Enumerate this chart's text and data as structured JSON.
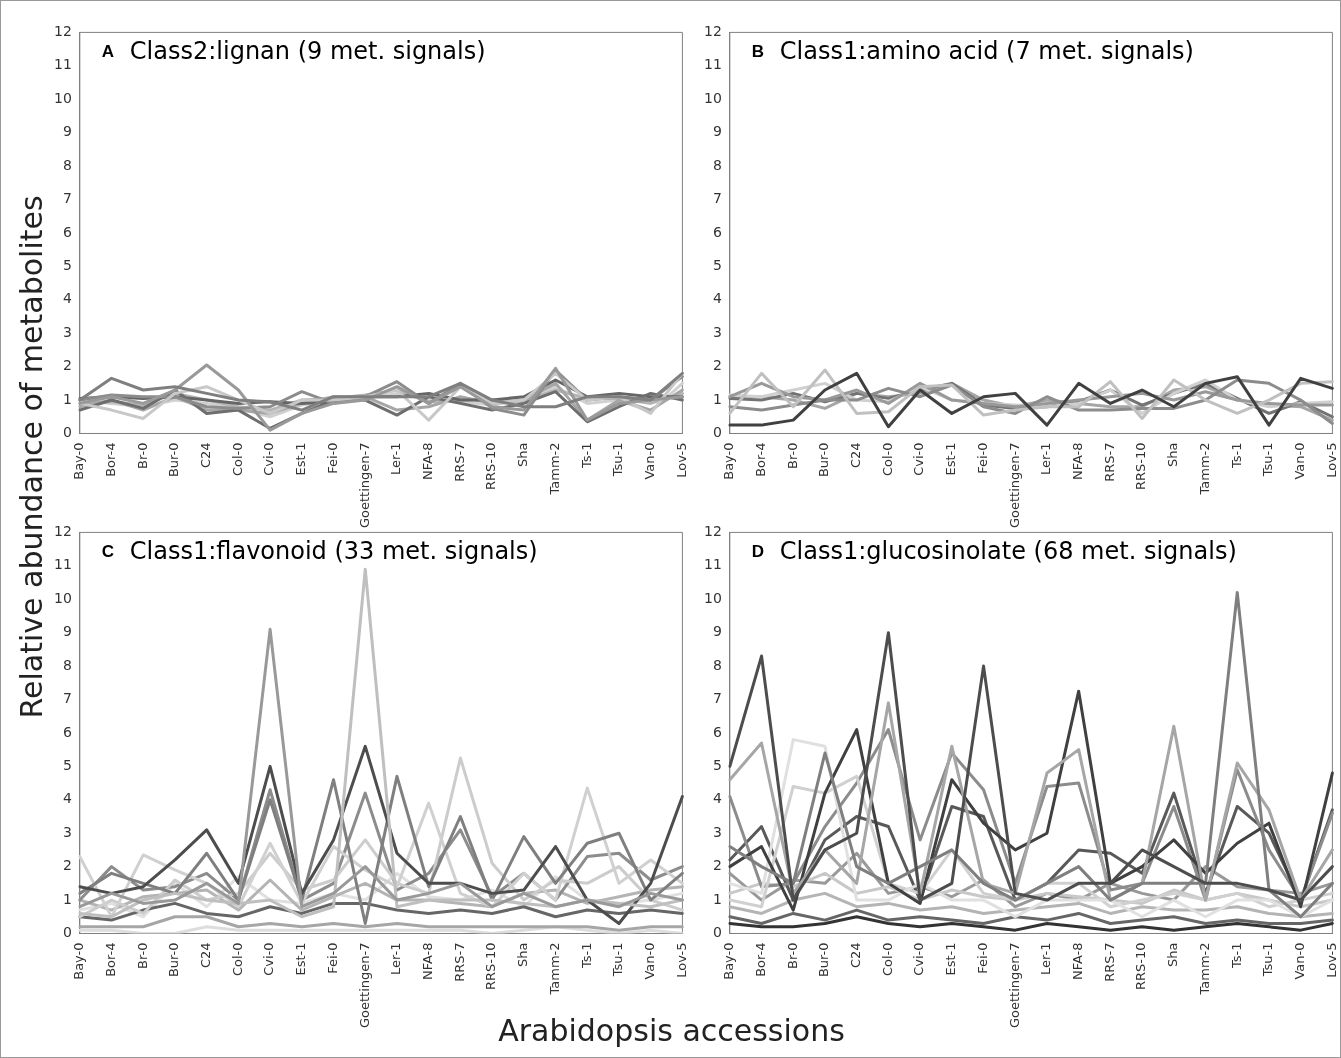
{
  "chart_data": [
    {
      "type": "line",
      "title": "A Class2:lignan (9 met. signals)",
      "ylabel": "Relative abundance of metabolites",
      "xlabel": "Arabidopsis accessions",
      "marker": "none",
      "ylim": [
        0,
        12
      ],
      "yticks": [
        0,
        1,
        2,
        3,
        4,
        5,
        6,
        7,
        8,
        9,
        10,
        11,
        12
      ],
      "categories": [
        "Bay-0",
        "Bor-4",
        "Br-0",
        "Bur-0",
        "C24",
        "Col-0",
        "Cvi-0",
        "Est-1",
        "Fei-0",
        "Goettingen-7",
        "Ler-1",
        "NFA-8",
        "RRS-7",
        "RRS-10",
        "Sha",
        "Tamm-2",
        "Ts-1",
        "Tsu-1",
        "Van-0",
        "Lov-5"
      ],
      "series": [
        {
          "color": "#7f7f7f",
          "values": [
            1.0,
            1.65,
            1.3,
            1.4,
            1.2,
            1.0,
            0.95,
            0.7,
            1.1,
            1.1,
            1.1,
            1.1,
            1.5,
            1.0,
            0.8,
            0.8,
            1.1,
            1.1,
            1.0,
            1.8
          ]
        },
        {
          "color": "#999999",
          "values": [
            0.9,
            1.1,
            0.9,
            1.3,
            2.05,
            1.3,
            0.1,
            0.6,
            0.9,
            1.0,
            1.4,
            0.9,
            1.4,
            0.8,
            0.7,
            1.95,
            0.4,
            0.9,
            1.0,
            1.1
          ]
        },
        {
          "color": "#c8c8c8",
          "values": [
            0.9,
            0.7,
            0.45,
            1.2,
            1.4,
            1.0,
            0.6,
            1.0,
            1.0,
            1.1,
            1.3,
            0.4,
            1.4,
            0.9,
            1.0,
            1.8,
            1.0,
            1.1,
            0.6,
            1.8
          ]
        },
        {
          "color": "#8c8c8c",
          "values": [
            1.0,
            1.15,
            1.1,
            1.1,
            0.8,
            0.75,
            0.8,
            1.25,
            0.9,
            1.1,
            1.55,
            0.9,
            1.5,
            0.75,
            0.55,
            1.9,
            1.0,
            1.1,
            1.0,
            1.7
          ]
        },
        {
          "color": "#6e6e6e",
          "values": [
            0.7,
            1.0,
            0.75,
            1.3,
            0.6,
            0.7,
            0.15,
            0.6,
            1.0,
            1.0,
            0.55,
            1.1,
            0.9,
            0.7,
            0.9,
            1.25,
            0.35,
            0.8,
            1.2,
            1.0
          ]
        },
        {
          "color": "#666666",
          "values": [
            1.05,
            1.1,
            1.05,
            1.1,
            1.0,
            0.9,
            0.95,
            0.9,
            0.95,
            1.1,
            1.1,
            1.2,
            1.0,
            1.0,
            1.1,
            1.6,
            1.1,
            1.2,
            1.1,
            1.1
          ]
        },
        {
          "color": "#a6a6a6",
          "values": [
            0.8,
            1.0,
            0.7,
            1.1,
            0.7,
            0.7,
            0.6,
            0.9,
            1.1,
            1.1,
            0.7,
            0.8,
            1.1,
            0.9,
            1.0,
            1.5,
            0.4,
            1.0,
            0.7,
            1.3
          ]
        },
        {
          "color": "#b4b4b4",
          "values": [
            0.9,
            0.95,
            0.85,
            1.2,
            1.0,
            0.8,
            0.7,
            1.0,
            1.05,
            1.15,
            1.3,
            0.95,
            1.0,
            1.0,
            0.95,
            1.3,
            1.05,
            1.05,
            0.9,
            1.2
          ]
        },
        {
          "color": "#d0d0d0",
          "values": [
            1.0,
            0.9,
            0.8,
            1.0,
            0.9,
            0.75,
            0.5,
            0.85,
            1.0,
            1.05,
            1.2,
            1.0,
            0.95,
            0.85,
            1.0,
            1.4,
            0.9,
            1.0,
            0.65,
            1.5
          ]
        }
      ]
    },
    {
      "type": "line",
      "title": "B Class1:amino acid (7 met. signals)",
      "marker": "none",
      "ylim": [
        0,
        12
      ],
      "yticks": [
        0,
        1,
        2,
        3,
        4,
        5,
        6,
        7,
        8,
        9,
        10,
        11,
        12
      ],
      "categories": [
        "Bay-0",
        "Bor-4",
        "Br-0",
        "Bur-0",
        "C24",
        "Col-0",
        "Cvi-0",
        "Est-1",
        "Fei-0",
        "Goettingen-7",
        "Ler-1",
        "NFA-8",
        "RRS-7",
        "RRS-10",
        "Sha",
        "Tamm-2",
        "Ts-1",
        "Tsu-1",
        "Van-0",
        "Lov-5"
      ],
      "series": [
        {
          "color": "#404040",
          "values": [
            0.25,
            0.25,
            0.4,
            1.3,
            1.8,
            0.2,
            1.3,
            0.6,
            1.1,
            1.2,
            0.25,
            1.5,
            0.9,
            1.3,
            0.8,
            1.5,
            1.7,
            0.25,
            1.65,
            1.35
          ]
        },
        {
          "color": "#c0c0c0",
          "values": [
            0.6,
            1.8,
            0.8,
            1.9,
            0.6,
            0.65,
            1.4,
            1.45,
            0.55,
            0.7,
            0.8,
            0.8,
            1.55,
            0.45,
            1.6,
            1.0,
            0.6,
            1.0,
            1.5,
            1.55
          ]
        },
        {
          "color": "#8c8c8c",
          "values": [
            0.8,
            0.7,
            0.85,
            1.0,
            1.0,
            1.35,
            1.1,
            1.45,
            0.8,
            0.6,
            1.1,
            0.7,
            0.7,
            0.75,
            0.75,
            1.0,
            1.6,
            1.5,
            1.0,
            0.3
          ]
        },
        {
          "color": "#999999",
          "values": [
            1.1,
            1.5,
            1.1,
            1.0,
            1.3,
            0.9,
            1.5,
            1.0,
            0.9,
            0.8,
            0.9,
            1.0,
            1.1,
            1.2,
            1.0,
            1.25,
            1.0,
            0.9,
            0.85,
            0.85
          ]
        },
        {
          "color": "#d0d0d0",
          "values": [
            1.15,
            1.1,
            1.3,
            1.5,
            1.0,
            0.95,
            1.4,
            1.0,
            0.9,
            0.85,
            0.8,
            0.9,
            1.3,
            0.6,
            1.2,
            1.6,
            1.0,
            0.8,
            0.9,
            0.95
          ]
        },
        {
          "color": "#737373",
          "values": [
            1.05,
            1.0,
            1.2,
            0.95,
            1.2,
            1.05,
            1.3,
            1.5,
            0.85,
            0.75,
            0.8,
            0.95,
            1.3,
            0.85,
            1.2,
            1.5,
            1.05,
            0.6,
            0.95,
            0.5
          ]
        },
        {
          "color": "#a6a6a6",
          "values": [
            1.1,
            1.1,
            1.0,
            0.75,
            1.2,
            1.1,
            1.2,
            1.5,
            1.0,
            0.8,
            1.0,
            0.9,
            0.8,
            0.8,
            1.3,
            1.4,
            1.0,
            0.85,
            0.8,
            0.4
          ]
        }
      ]
    },
    {
      "type": "line",
      "title": "C Class1:flavonoid (33 met. signals)",
      "marker": "none",
      "ylim": [
        0,
        12
      ],
      "yticks": [
        0,
        1,
        2,
        3,
        4,
        5,
        6,
        7,
        8,
        9,
        10,
        11,
        12
      ],
      "categories": [
        "Bay-0",
        "Bor-4",
        "Br-0",
        "Bur-0",
        "C24",
        "Col-0",
        "Cvi-0",
        "Est-1",
        "Fei-0",
        "Goettingen-7",
        "Ler-1",
        "NFA-8",
        "RRS-7",
        "RRS-10",
        "Sha",
        "Tamm-2",
        "Ts-1",
        "Tsu-1",
        "Van-0",
        "Lov-5"
      ],
      "series": [
        {
          "color": "#999999",
          "values": [
            0.8,
            1.2,
            0.9,
            1.0,
            1.5,
            0.9,
            9.1,
            0.8,
            1.2,
            2.0,
            1.0,
            1.2,
            1.5,
            0.8,
            1.2,
            0.8,
            1.0,
            0.8,
            1.2,
            1.0
          ]
        },
        {
          "color": "#bfbfbf",
          "values": [
            0.6,
            0.5,
            1.0,
            1.2,
            1.0,
            0.9,
            1.0,
            0.5,
            0.8,
            10.9,
            0.8,
            1.0,
            1.0,
            1.0,
            0.9,
            0.8,
            1.0,
            0.9,
            0.8,
            1.0
          ]
        },
        {
          "color": "#4d4d4d",
          "values": [
            1.4,
            1.2,
            1.4,
            2.2,
            3.1,
            1.5,
            5.0,
            1.2,
            2.8,
            5.6,
            2.4,
            1.5,
            1.5,
            1.2,
            1.3,
            2.6,
            1.0,
            0.3,
            1.5,
            4.1
          ]
        },
        {
          "color": "#7f7f7f",
          "values": [
            1.2,
            1.8,
            1.5,
            1.2,
            2.4,
            1.0,
            4.0,
            1.0,
            4.6,
            0.3,
            4.7,
            1.4,
            3.5,
            1.0,
            2.9,
            1.5,
            2.7,
            3.0,
            1.0,
            1.8
          ]
        },
        {
          "color": "#d0d0d0",
          "values": [
            2.3,
            0.5,
            2.35,
            1.9,
            1.5,
            0.8,
            2.7,
            0.9,
            2.6,
            1.9,
            1.4,
            3.9,
            1.2,
            0.8,
            1.8,
            1.0,
            4.35,
            1.5,
            2.2,
            1.5
          ]
        },
        {
          "color": "#cccccc",
          "values": [
            0.5,
            1.0,
            0.6,
            1.6,
            1.0,
            1.2,
            2.4,
            1.3,
            1.6,
            2.8,
            1.5,
            1.2,
            5.25,
            2.1,
            1.0,
            1.6,
            1.5,
            2.0,
            1.0,
            0.7
          ]
        },
        {
          "color": "#8c8c8c",
          "values": [
            1.0,
            2.0,
            1.3,
            1.4,
            1.8,
            1.0,
            4.3,
            1.0,
            1.5,
            4.2,
            1.3,
            1.8,
            3.1,
            1.1,
            1.8,
            1.0,
            2.3,
            2.4,
            1.6,
            2.0
          ]
        },
        {
          "color": "#a6a6a6",
          "values": [
            0.2,
            0.2,
            0.2,
            0.5,
            0.5,
            0.2,
            0.3,
            0.2,
            0.3,
            0.2,
            0.3,
            0.2,
            0.2,
            0.2,
            0.2,
            0.2,
            0.2,
            0.1,
            0.2,
            0.2
          ]
        },
        {
          "color": "#666666",
          "values": [
            0.5,
            0.4,
            0.7,
            0.9,
            0.6,
            0.5,
            0.8,
            0.6,
            0.9,
            0.9,
            0.7,
            0.6,
            0.7,
            0.6,
            0.8,
            0.5,
            0.7,
            0.6,
            0.7,
            0.6
          ]
        },
        {
          "color": "#b4b4b4",
          "values": [
            1.0,
            0.7,
            1.1,
            1.2,
            1.3,
            0.7,
            1.6,
            0.7,
            1.1,
            1.5,
            1.0,
            1.0,
            0.9,
            0.8,
            1.2,
            1.3,
            0.9,
            1.1,
            1.3,
            1.4
          ]
        },
        {
          "color": "#dddddd",
          "values": [
            0.1,
            0.1,
            0.0,
            0.0,
            0.2,
            0.1,
            0.1,
            0.1,
            0.1,
            0.1,
            0.1,
            0.1,
            0.1,
            0.0,
            0.1,
            0.2,
            0.1,
            0.0,
            0.1,
            0.0
          ]
        },
        {
          "color": "#e0e0e0",
          "values": [
            0.7,
            0.9,
            0.5,
            1.5,
            0.8,
            1.7,
            1.0,
            0.9,
            1.2,
            1.0,
            1.8,
            1.1,
            1.0,
            1.3,
            0.8,
            1.7,
            1.0,
            0.9,
            1.0,
            1.2
          ]
        }
      ]
    },
    {
      "type": "line",
      "title": "D Class1:glucosinolate (68 met. signals)",
      "marker": "none",
      "ylim": [
        0,
        12
      ],
      "yticks": [
        0,
        1,
        2,
        3,
        4,
        5,
        6,
        7,
        8,
        9,
        10,
        11,
        12
      ],
      "categories": [
        "Bay-0",
        "Bor-4",
        "Br-0",
        "Bur-0",
        "C24",
        "Col-0",
        "Cvi-0",
        "Est-1",
        "Fei-0",
        "Goettingen-7",
        "Ler-1",
        "NFA-8",
        "RRS-7",
        "RRS-10",
        "Sha",
        "Tamm-2",
        "Ts-1",
        "Tsu-1",
        "Van-0",
        "Lov-5"
      ],
      "series": [
        {
          "color": "#4d4d4d",
          "values": [
            5.0,
            8.3,
            1.0,
            2.5,
            3.0,
            9.0,
            1.0,
            1.5,
            8.0,
            1.2,
            1.0,
            1.5,
            1.5,
            2.5,
            2.0,
            1.5,
            1.5,
            1.3,
            1.0,
            2.0
          ]
        },
        {
          "color": "#7f7f7f",
          "values": [
            2.6,
            2.0,
            1.5,
            5.4,
            2.0,
            1.5,
            2.0,
            2.5,
            1.5,
            1.0,
            1.5,
            2.0,
            1.0,
            1.5,
            1.5,
            1.5,
            10.2,
            1.3,
            0.5,
            1.5
          ]
        },
        {
          "color": "#a6a6a6",
          "values": [
            4.6,
            5.7,
            1.2,
            2.5,
            1.5,
            6.9,
            1.2,
            5.6,
            1.5,
            1.2,
            4.8,
            5.5,
            1.0,
            1.5,
            6.2,
            1.0,
            5.1,
            3.7,
            1.0,
            2.5
          ]
        },
        {
          "color": "#404040",
          "values": [
            2.0,
            2.6,
            0.7,
            4.2,
            6.1,
            1.5,
            0.9,
            4.6,
            3.3,
            2.5,
            3.0,
            7.25,
            1.5,
            2.0,
            2.8,
            1.8,
            2.7,
            3.3,
            0.8,
            4.8
          ]
        },
        {
          "color": "#e0e0e0",
          "values": [
            1.5,
            1.2,
            5.8,
            5.6,
            1.0,
            1.0,
            1.5,
            1.0,
            1.0,
            0.5,
            1.0,
            1.0,
            1.0,
            0.5,
            1.0,
            0.5,
            1.0,
            1.0,
            0.5,
            1.0
          ]
        },
        {
          "color": "#d0d0d0",
          "values": [
            1.0,
            0.8,
            4.4,
            4.2,
            4.7,
            1.5,
            1.2,
            2.5,
            1.2,
            1.0,
            1.5,
            1.5,
            0.8,
            1.0,
            1.2,
            1.0,
            1.2,
            0.8,
            1.0,
            1.2
          ]
        },
        {
          "color": "#8c8c8c",
          "values": [
            4.1,
            1.4,
            1.5,
            3.2,
            4.5,
            6.1,
            2.8,
            5.4,
            4.3,
            1.5,
            4.4,
            4.5,
            1.3,
            1.5,
            3.8,
            1.0,
            4.9,
            2.5,
            1.0,
            3.6
          ]
        },
        {
          "color": "#595959",
          "values": [
            2.2,
            3.2,
            1.0,
            2.8,
            3.5,
            3.2,
            1.0,
            3.8,
            3.5,
            1.0,
            1.5,
            2.5,
            2.4,
            1.8,
            4.2,
            1.2,
            3.8,
            3.0,
            1.0,
            3.7
          ]
        },
        {
          "color": "#333333",
          "values": [
            0.3,
            0.2,
            0.2,
            0.3,
            0.5,
            0.3,
            0.2,
            0.3,
            0.2,
            0.1,
            0.3,
            0.2,
            0.1,
            0.2,
            0.1,
            0.2,
            0.3,
            0.2,
            0.1,
            0.3
          ]
        },
        {
          "color": "#b4b4b4",
          "values": [
            0.8,
            0.6,
            1.0,
            1.2,
            0.8,
            0.9,
            0.7,
            0.8,
            0.6,
            0.7,
            0.8,
            0.9,
            0.6,
            0.8,
            0.7,
            0.7,
            0.8,
            0.6,
            0.5,
            0.6
          ]
        },
        {
          "color": "#c8c8c8",
          "values": [
            1.2,
            1.5,
            1.4,
            1.8,
            1.2,
            1.4,
            1.0,
            1.3,
            1.1,
            1.0,
            1.2,
            1.1,
            1.0,
            0.9,
            1.3,
            1.0,
            1.2,
            1.0,
            0.8,
            1.0
          ]
        },
        {
          "color": "#666666",
          "values": [
            0.5,
            0.3,
            0.6,
            0.4,
            0.7,
            0.4,
            0.5,
            0.4,
            0.3,
            0.5,
            0.4,
            0.6,
            0.3,
            0.4,
            0.5,
            0.3,
            0.4,
            0.3,
            0.3,
            0.4
          ]
        },
        {
          "color": "#999999",
          "values": [
            1.8,
            1.0,
            1.6,
            1.5,
            2.4,
            1.2,
            1.4,
            1.1,
            1.6,
            0.8,
            1.2,
            1.0,
            1.5,
            1.2,
            1.0,
            2.0,
            1.4,
            1.3,
            1.2,
            1.5
          ]
        }
      ]
    }
  ]
}
